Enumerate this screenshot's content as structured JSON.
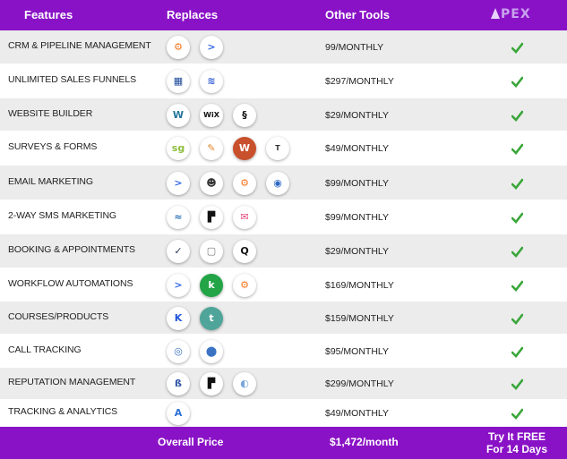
{
  "header": {
    "features": "Features",
    "replaces": "Replaces",
    "other_tools": "Other Tools",
    "logo_text": "PEX"
  },
  "colors": {
    "purple": "#8a12c6",
    "check_green": "#3aa63a",
    "row_alt": "#ececec"
  },
  "rows": [
    {
      "feature": "CRM & Pipeline Management",
      "price": "99/MONTHLY",
      "icons": [
        "hubspot-icon",
        "activecampaign-icon"
      ]
    },
    {
      "feature": "Unlimited Sales Funnels",
      "price": "$297/MONTHLY",
      "icons": [
        "clickfunnels-icon",
        "leadpages-icon"
      ]
    },
    {
      "feature": "Website Builder",
      "price": "$29/MONTHLY",
      "icons": [
        "wordpress-icon",
        "wix-icon",
        "squarespace-icon"
      ]
    },
    {
      "feature": "Surveys & Forms",
      "price": "$49/MONTHLY",
      "icons": [
        "surveygizmo-icon",
        "pen-icon",
        "wufoo-icon",
        "typeform-icon"
      ]
    },
    {
      "feature": "Email Marketing",
      "price": "$99/MONTHLY",
      "icons": [
        "activecampaign-icon",
        "mailchimp-icon",
        "hubspot-icon",
        "constantcontact-icon"
      ]
    },
    {
      "feature": "2-Way SMS Marketing",
      "price": "$99/MONTHLY",
      "icons": [
        "sendinblue-icon",
        "podium-icon",
        "mail-icon"
      ]
    },
    {
      "feature": "Booking & Appointments",
      "price": "$29/MONTHLY",
      "icons": [
        "calendly-icon",
        "calendar-icon",
        "acuity-icon"
      ]
    },
    {
      "feature": "Workflow Automations",
      "price": "$169/MONTHLY",
      "icons": [
        "activecampaign-icon",
        "keap-icon",
        "hubspot-icon"
      ]
    },
    {
      "feature": "Courses/Products",
      "price": "$159/MONTHLY",
      "icons": [
        "kajabi-icon",
        "teachable-icon"
      ]
    },
    {
      "feature": "Call Tracking",
      "price": "$95/MONTHLY",
      "icons": [
        "callrail-icon",
        "location-pin-icon"
      ]
    },
    {
      "feature": "Reputation Management",
      "price": "$299/MONTHLY",
      "icons": [
        "birdeye-icon",
        "podium-icon",
        "globe-icon"
      ]
    },
    {
      "feature": "Tracking & Analytics",
      "price": "$49/MONTHLY",
      "icons": [
        "analytics-icon"
      ]
    }
  ],
  "footer": {
    "overall_label": "Overall Price",
    "overall_price": "$1,472/month",
    "trial_line1": "Try It FREE",
    "trial_line2": "For 14 Days"
  }
}
